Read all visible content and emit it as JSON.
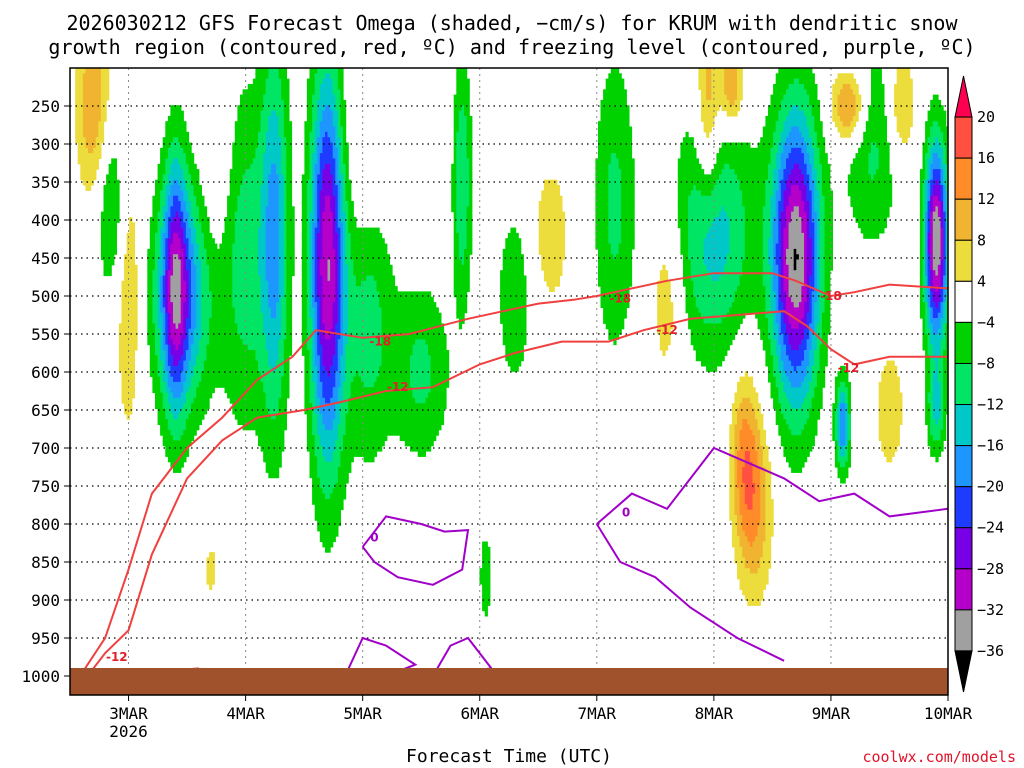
{
  "chart_data": {
    "type": "heatmap",
    "title_line1": "2026030212 GFS Forecast Omega (shaded, −cm/s) for KRUM with dendritic snow",
    "title_line2": "growth region (contoured, red, ºC) and freezing level (contoured, purple, ºC)",
    "xlabel": "Forecast Time (UTC)",
    "x_ticks": [
      "3MAR",
      "4MAR",
      "5MAR",
      "6MAR",
      "7MAR",
      "8MAR",
      "9MAR",
      "10MAR"
    ],
    "x_year": "2026",
    "x_range_days": [
      2.5,
      10.0
    ],
    "y_ticks": [
      250,
      300,
      350,
      400,
      450,
      500,
      550,
      600,
      650,
      700,
      750,
      800,
      850,
      900,
      950,
      1000
    ],
    "y_range_hpa": [
      200,
      1025
    ],
    "colorbar_levels": [
      20,
      16,
      12,
      8,
      4,
      -4,
      -8,
      -12,
      -16,
      -20,
      -24,
      -28,
      -32,
      -36
    ],
    "colorbar_colors": [
      "#ff0050",
      "#ff5040",
      "#ff8c28",
      "#f0b430",
      "#ecdc3c",
      "#ffffff",
      "#00d200",
      "#00e664",
      "#00c8c8",
      "#1e96ff",
      "#1e3cff",
      "#7800e6",
      "#b400c8",
      "#a0a0a0",
      "#000000"
    ],
    "contours": {
      "red_dgz_labels": [
        "-18",
        "-12"
      ],
      "purple_freezing_label": "0",
      "minus18_line": [
        [
          2.5,
          1020
        ],
        [
          2.8,
          950
        ],
        [
          3.0,
          860
        ],
        [
          3.2,
          760
        ],
        [
          3.5,
          700
        ],
        [
          3.8,
          660
        ],
        [
          4.1,
          610
        ],
        [
          4.4,
          580
        ],
        [
          4.6,
          545
        ],
        [
          5.0,
          555
        ],
        [
          5.4,
          550
        ],
        [
          5.9,
          530
        ],
        [
          6.2,
          520
        ],
        [
          6.5,
          510
        ],
        [
          6.8,
          505
        ],
        [
          7.0,
          500
        ],
        [
          7.3,
          490
        ],
        [
          7.6,
          480
        ],
        [
          8.0,
          470
        ],
        [
          8.5,
          470
        ],
        [
          8.7,
          480
        ],
        [
          9.0,
          500
        ],
        [
          9.2,
          495
        ],
        [
          9.5,
          485
        ],
        [
          10.0,
          490
        ]
      ],
      "minus12_line": [
        [
          2.6,
          1010
        ],
        [
          2.8,
          970
        ],
        [
          3.0,
          940
        ],
        [
          3.2,
          840
        ],
        [
          3.5,
          740
        ],
        [
          3.8,
          690
        ],
        [
          4.1,
          660
        ],
        [
          4.5,
          650
        ],
        [
          4.8,
          640
        ],
        [
          5.2,
          625
        ],
        [
          5.6,
          620
        ],
        [
          6.0,
          590
        ],
        [
          6.3,
          575
        ],
        [
          6.7,
          560
        ],
        [
          7.1,
          560
        ],
        [
          7.4,
          545
        ],
        [
          7.8,
          530
        ],
        [
          8.2,
          525
        ],
        [
          8.6,
          520
        ],
        [
          8.8,
          540
        ],
        [
          9.0,
          570
        ],
        [
          9.2,
          590
        ],
        [
          9.5,
          580
        ],
        [
          10.0,
          580
        ]
      ],
      "freezing_cells": [
        [
          [
            5.0,
            830
          ],
          [
            5.2,
            790
          ],
          [
            5.5,
            800
          ],
          [
            5.7,
            810
          ],
          [
            5.9,
            808
          ],
          [
            5.85,
            860
          ],
          [
            5.6,
            880
          ],
          [
            5.3,
            870
          ],
          [
            5.1,
            850
          ],
          [
            5.0,
            830
          ]
        ],
        [
          [
            4.85,
            1000
          ],
          [
            5.0,
            950
          ],
          [
            5.2,
            960
          ],
          [
            5.45,
            985
          ],
          [
            5.2,
            1000
          ],
          [
            4.85,
            1000
          ]
        ],
        [
          [
            5.6,
            1000
          ],
          [
            5.75,
            960
          ],
          [
            5.9,
            950
          ],
          [
            6.1,
            990
          ],
          [
            5.6,
            1000
          ]
        ],
        [
          [
            7.0,
            800
          ],
          [
            7.3,
            760
          ],
          [
            7.6,
            780
          ],
          [
            7.8,
            740
          ],
          [
            8.0,
            700
          ],
          [
            8.3,
            720
          ],
          [
            8.6,
            740
          ],
          [
            8.9,
            770
          ],
          [
            9.2,
            760
          ],
          [
            9.5,
            790
          ],
          [
            10.0,
            780
          ]
        ],
        [
          [
            7.0,
            800
          ],
          [
            7.2,
            850
          ],
          [
            7.5,
            870
          ],
          [
            7.8,
            910
          ],
          [
            8.2,
            950
          ],
          [
            8.6,
            980
          ]
        ]
      ]
    },
    "omega_features": [
      {
        "t0": 4.55,
        "t1": 4.85,
        "p0": 200,
        "p1": 720,
        "peak": -32,
        "note": "strong upward motion, 4-5 MAR"
      },
      {
        "t0": 8.5,
        "t1": 8.9,
        "p0": 260,
        "p1": 640,
        "peak": -36,
        "note": "strong upward motion, 8-9 MAR"
      },
      {
        "t0": 9.8,
        "t1": 10.0,
        "p0": 300,
        "p1": 560,
        "peak": -36,
        "note": "upward motion near 10 MAR"
      },
      {
        "t0": 3.2,
        "t1": 3.7,
        "p0": 350,
        "p1": 650,
        "peak": -20,
        "note": "moderate upward motion 3 MAR"
      },
      {
        "t0": 9.0,
        "t1": 9.3,
        "p0": 200,
        "p1": 300,
        "peak": 16,
        "note": "sinking motion aloft 9 MAR"
      },
      {
        "t0": 8.2,
        "t1": 8.5,
        "p0": 650,
        "p1": 900,
        "peak": 12,
        "note": "sinking motion low levels 8 MAR"
      }
    ]
  },
  "watermark": "coolwx.com/models"
}
